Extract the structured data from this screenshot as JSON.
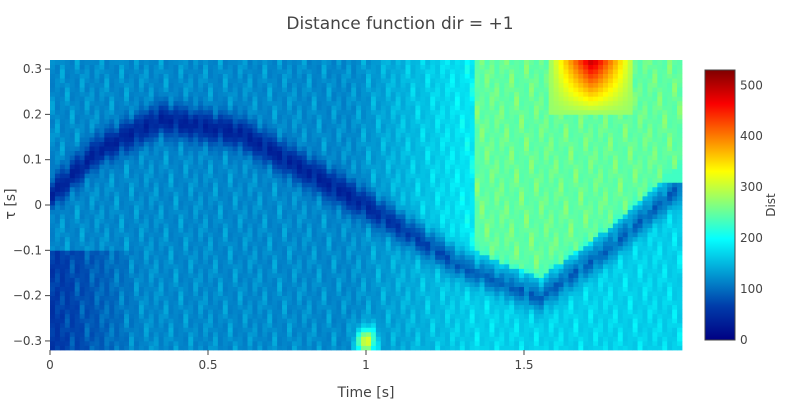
{
  "chart_data": {
    "type": "heatmap",
    "title": "Distance function dir = +1",
    "xlabel": "Time [s]",
    "ylabel": "τ [s]",
    "colorbar_title": "Dist",
    "xlim": [
      0,
      2.0
    ],
    "ylim": [
      -0.32,
      0.32
    ],
    "zlim": [
      0,
      530
    ],
    "x_ticks": [
      0,
      0.5,
      1,
      1.5
    ],
    "x_tick_labels": [
      "0",
      "0.5",
      "1",
      "1.5"
    ],
    "y_ticks": [
      -0.3,
      -0.2,
      -0.1,
      0,
      0.1,
      0.2,
      0.3
    ],
    "y_tick_labels": [
      "−0.3",
      "−0.2",
      "−0.1",
      "0",
      "0.1",
      "0.2",
      "0.3"
    ],
    "colorbar_ticks": [
      0,
      100,
      200,
      300,
      400,
      500
    ],
    "colorbar_tick_labels": [
      "0",
      "100",
      "200",
      "300",
      "400",
      "500"
    ],
    "colorscale": [
      "#000083",
      "#003caa",
      "#05ffff",
      "#ffff00",
      "#fa0000",
      "#800000"
    ],
    "colorscale_stops": [
      0,
      0.125,
      0.375,
      0.625,
      0.875,
      1
    ],
    "grid": false,
    "approx_features": {
      "dark_valley_points": [
        [
          0.0,
          0.02
        ],
        [
          0.15,
          0.12
        ],
        [
          0.35,
          0.19
        ],
        [
          0.6,
          0.16
        ],
        [
          1.0,
          0.0
        ],
        [
          1.3,
          -0.13
        ],
        [
          1.55,
          -0.2
        ],
        [
          1.75,
          -0.1
        ],
        [
          2.0,
          0.05
        ]
      ],
      "peak_region": {
        "x": [
          1.58,
          1.85
        ],
        "y": [
          0.2,
          0.32
        ],
        "value": 500
      },
      "baseline_value": 110
    }
  }
}
